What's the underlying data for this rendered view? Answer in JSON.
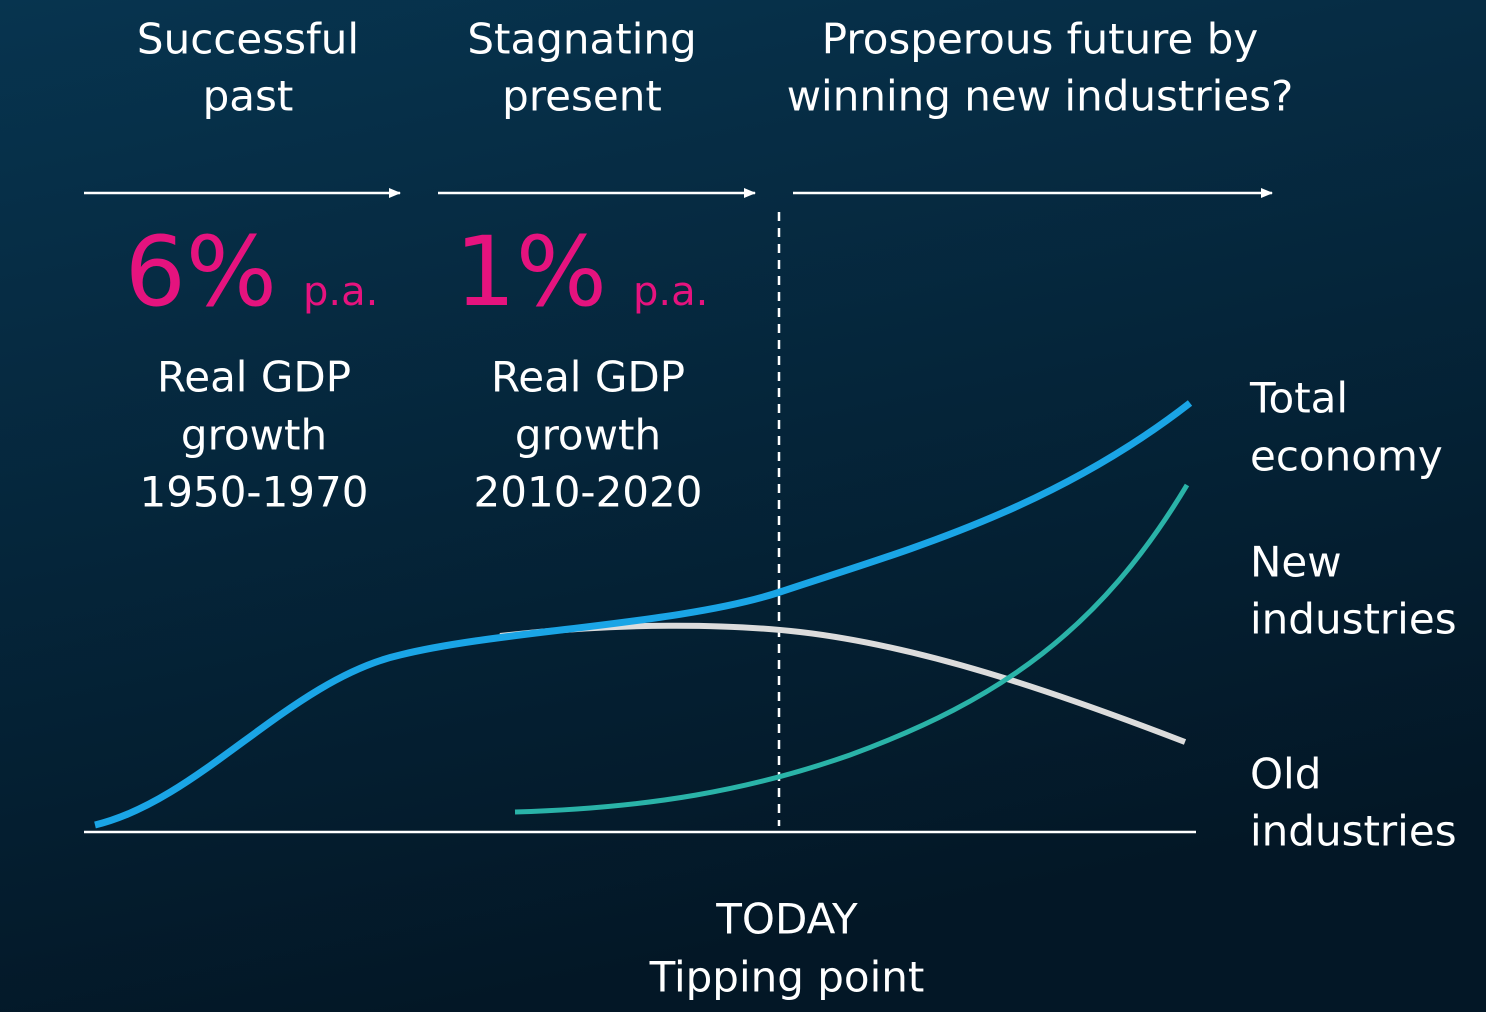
{
  "phases": [
    {
      "title": [
        "Successful",
        "past"
      ],
      "rate": "6%",
      "unit": "p.a.",
      "description": [
        "Real GDP",
        "growth",
        "1950-1970"
      ]
    },
    {
      "title": [
        "Stagnating",
        "present"
      ],
      "rate": "1%",
      "unit": "p.a.",
      "description": [
        "Real GDP",
        "growth",
        "2010-2020"
      ]
    },
    {
      "title": [
        "Prosperous future by",
        "winning new industries?"
      ]
    }
  ],
  "curve_labels": [
    [
      "Total",
      "economy"
    ],
    [
      "New",
      "industries"
    ],
    [
      "Old",
      "industries"
    ]
  ],
  "today": [
    "TODAY",
    "Tipping point"
  ]
}
